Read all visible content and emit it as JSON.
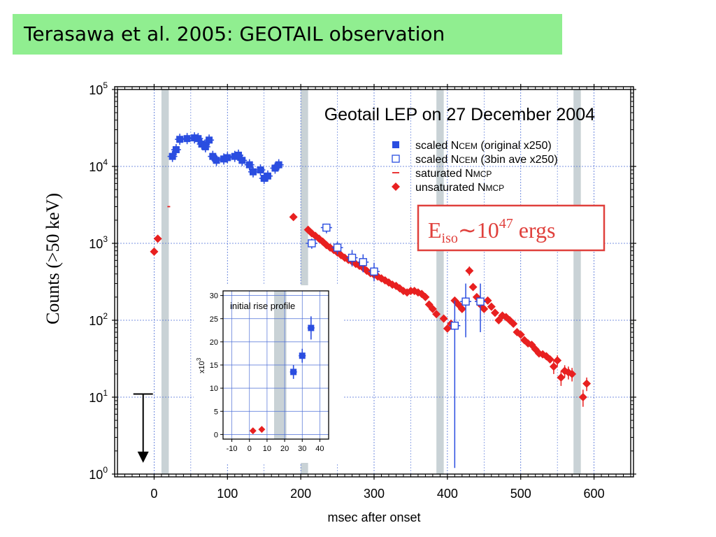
{
  "banner": {
    "title": "Terasawa et al. 2005:  GEOTAIL observation"
  },
  "chart_data": [
    {
      "type": "scatter",
      "title": "Geotail LEP on 27 December 2004",
      "xlabel": "msec after onset",
      "ylabel": "Counts (>50 keV)",
      "xlim": [
        -50,
        650
      ],
      "ylim": [
        1,
        100000
      ],
      "yscale": "log",
      "grid": true,
      "legend_position": "top-right",
      "xticks": [
        0,
        100,
        200,
        300,
        400,
        500,
        600
      ],
      "yticks": [
        {
          "base": "10",
          "exp": "0",
          "value": 1
        },
        {
          "base": "10",
          "exp": "1",
          "value": 10
        },
        {
          "base": "10",
          "exp": "2",
          "value": 100
        },
        {
          "base": "10",
          "exp": "3",
          "value": 1000
        },
        {
          "base": "10",
          "exp": "4",
          "value": 10000
        },
        {
          "base": "10",
          "exp": "5",
          "value": 100000
        }
      ],
      "shaded_bands": [
        [
          10,
          20
        ],
        [
          200,
          210
        ],
        [
          385,
          395
        ],
        [
          572,
          582
        ]
      ],
      "legend": [
        {
          "name": "scaled N",
          "sub": "CEM",
          "tail": " (original   x250)",
          "marker": "filled-square",
          "color": "#2a4de0"
        },
        {
          "name": "scaled N",
          "sub": "CEM",
          "tail": " (3bin ave x250)",
          "marker": "open-square",
          "color": "#2a4de0"
        },
        {
          "name": "saturated N",
          "sub": "MCP",
          "tail": "",
          "marker": "dash",
          "color": "#e82020"
        },
        {
          "name": "unsaturated N",
          "sub": "MCP",
          "tail": "",
          "marker": "diamond",
          "color": "#e82020"
        }
      ],
      "series": [
        {
          "name": "scaled NCEM (original x250)",
          "color": "#2a4de0",
          "points": [
            [
              25,
              13500
            ],
            [
              30,
              16500
            ],
            [
              35,
              22500
            ],
            [
              45,
              23000
            ],
            [
              55,
              23500
            ],
            [
              60,
              23000
            ],
            [
              65,
              19500
            ],
            [
              70,
              18000
            ],
            [
              75,
              22000
            ],
            [
              80,
              13500
            ],
            [
              85,
              12000
            ],
            [
              95,
              12500
            ],
            [
              100,
              13000
            ],
            [
              110,
              13500
            ],
            [
              115,
              14000
            ],
            [
              120,
              12000
            ],
            [
              130,
              10500
            ],
            [
              135,
              8500
            ],
            [
              145,
              9000
            ],
            [
              150,
              7000
            ],
            [
              155,
              7500
            ],
            [
              165,
              9500
            ],
            [
              170,
              10500
            ]
          ]
        },
        {
          "name": "scaled NCEM (3bin ave x250)",
          "color": "#2a4de0",
          "points": [
            {
              "x": 215,
              "y": 1000,
              "lo": 850,
              "hi": 1150
            },
            {
              "x": 235,
              "y": 1600,
              "lo": 1350,
              "hi": 1800
            },
            {
              "x": 250,
              "y": 880,
              "lo": 720,
              "hi": 1050
            },
            {
              "x": 270,
              "y": 650,
              "lo": 500,
              "hi": 820
            },
            {
              "x": 285,
              "y": 570,
              "lo": 420,
              "hi": 720
            },
            {
              "x": 300,
              "y": 430,
              "lo": 320,
              "hi": 560
            },
            {
              "x": 410,
              "y": 85,
              "lo": 1.2,
              "hi": 180
            },
            {
              "x": 425,
              "y": 175,
              "lo": 60,
              "hi": 300
            },
            {
              "x": 445,
              "y": 175,
              "lo": 70,
              "hi": 300
            }
          ]
        },
        {
          "name": "saturated NMCP",
          "color": "#e82020",
          "points": [
            [
              20,
              3000
            ]
          ]
        },
        {
          "name": "unsaturated NMCP",
          "color": "#e82020",
          "points": [
            {
              "x": 0,
              "y": 780
            },
            {
              "x": 5,
              "y": 1150
            },
            {
              "x": 190,
              "y": 2200
            },
            {
              "x": 210,
              "y": 1500
            },
            {
              "x": 215,
              "y": 1350
            },
            {
              "x": 220,
              "y": 1250
            },
            {
              "x": 225,
              "y": 1150
            },
            {
              "x": 230,
              "y": 1050
            },
            {
              "x": 235,
              "y": 950
            },
            {
              "x": 240,
              "y": 880
            },
            {
              "x": 245,
              "y": 820
            },
            {
              "x": 250,
              "y": 760
            },
            {
              "x": 255,
              "y": 700
            },
            {
              "x": 260,
              "y": 650
            },
            {
              "x": 265,
              "y": 610
            },
            {
              "x": 270,
              "y": 580
            },
            {
              "x": 275,
              "y": 540
            },
            {
              "x": 280,
              "y": 510
            },
            {
              "x": 285,
              "y": 480
            },
            {
              "x": 290,
              "y": 440
            },
            {
              "x": 295,
              "y": 410
            },
            {
              "x": 300,
              "y": 390
            },
            {
              "x": 305,
              "y": 370
            },
            {
              "x": 310,
              "y": 350
            },
            {
              "x": 315,
              "y": 330
            },
            {
              "x": 320,
              "y": 310
            },
            {
              "x": 325,
              "y": 290
            },
            {
              "x": 330,
              "y": 280
            },
            {
              "x": 335,
              "y": 260
            },
            {
              "x": 340,
              "y": 240
            },
            {
              "x": 345,
              "y": 230
            },
            {
              "x": 350,
              "y": 240
            },
            {
              "x": 355,
              "y": 240
            },
            {
              "x": 360,
              "y": 230
            },
            {
              "x": 365,
              "y": 220
            },
            {
              "x": 370,
              "y": 200
            },
            {
              "x": 375,
              "y": 160
            },
            {
              "x": 380,
              "y": 140
            },
            {
              "x": 385,
              "y": 120
            },
            {
              "x": 395,
              "y": 105
            },
            {
              "x": 400,
              "y": 78
            },
            {
              "x": 405,
              "y": 90
            },
            {
              "x": 410,
              "y": 180
            },
            {
              "x": 415,
              "y": 160
            },
            {
              "x": 420,
              "y": 140
            },
            {
              "x": 430,
              "y": 440,
              "lo": 380,
              "hi": 500
            },
            {
              "x": 435,
              "y": 270
            },
            {
              "x": 440,
              "y": 200
            },
            {
              "x": 445,
              "y": 160
            },
            {
              "x": 450,
              "y": 140
            },
            {
              "x": 455,
              "y": 180
            },
            {
              "x": 460,
              "y": 150
            },
            {
              "x": 465,
              "y": 125
            },
            {
              "x": 470,
              "y": 100
            },
            {
              "x": 475,
              "y": 115
            },
            {
              "x": 480,
              "y": 110
            },
            {
              "x": 485,
              "y": 100
            },
            {
              "x": 490,
              "y": 90
            },
            {
              "x": 495,
              "y": 70
            },
            {
              "x": 500,
              "y": 65
            },
            {
              "x": 505,
              "y": 55
            },
            {
              "x": 510,
              "y": 50
            },
            {
              "x": 515,
              "y": 48
            },
            {
              "x": 520,
              "y": 42
            },
            {
              "x": 525,
              "y": 37
            },
            {
              "x": 530,
              "y": 36
            },
            {
              "x": 535,
              "y": 34
            },
            {
              "x": 540,
              "y": 31
            },
            {
              "x": 545,
              "y": 25,
              "lo": 20,
              "hi": 30
            },
            {
              "x": 550,
              "y": 30,
              "lo": 25,
              "hi": 35
            },
            {
              "x": 555,
              "y": 18,
              "lo": 14,
              "hi": 22
            },
            {
              "x": 560,
              "y": 22,
              "lo": 18,
              "hi": 26
            },
            {
              "x": 565,
              "y": 21,
              "lo": 17,
              "hi": 25
            },
            {
              "x": 570,
              "y": 20,
              "lo": 16,
              "hi": 24
            },
            {
              "x": 585,
              "y": 10,
              "lo": 7.5,
              "hi": 12.5
            },
            {
              "x": 590,
              "y": 15,
              "lo": 12,
              "hi": 18
            }
          ]
        }
      ],
      "upper_limit_arrow": {
        "x": -15,
        "from": 11,
        "to": 1.4
      },
      "annotation": {
        "base": "E",
        "sub": "iso",
        "op": "∼10",
        "sup": "47",
        "tail": " ergs",
        "color": "#e0403c"
      }
    },
    {
      "type": "scatter",
      "title": "initial rise profile",
      "ylabel": "x10",
      "ylabel_sup": "3",
      "xlim": [
        -15,
        45
      ],
      "ylim": [
        -1,
        31
      ],
      "grid": true,
      "xticks": [
        -10,
        0,
        10,
        20,
        30,
        40
      ],
      "yticks": [
        0,
        5,
        10,
        15,
        20,
        25,
        30
      ],
      "shaded_bands": [
        [
          14,
          21
        ]
      ],
      "series": [
        {
          "name": "scaled NCEM",
          "color": "#2a4de0",
          "points": [
            {
              "x": 25,
              "y": 13.5,
              "ex": 2,
              "ey": 1.5
            },
            {
              "x": 30,
              "y": 17,
              "ex": 2,
              "ey": 1.5
            },
            {
              "x": 35,
              "y": 23,
              "ex": 2,
              "ey": 2.5
            }
          ]
        },
        {
          "name": "unsaturated NMCP",
          "color": "#e82020",
          "points": [
            {
              "x": 2,
              "y": 0.8
            },
            {
              "x": 7,
              "y": 1.1
            }
          ]
        }
      ]
    }
  ]
}
